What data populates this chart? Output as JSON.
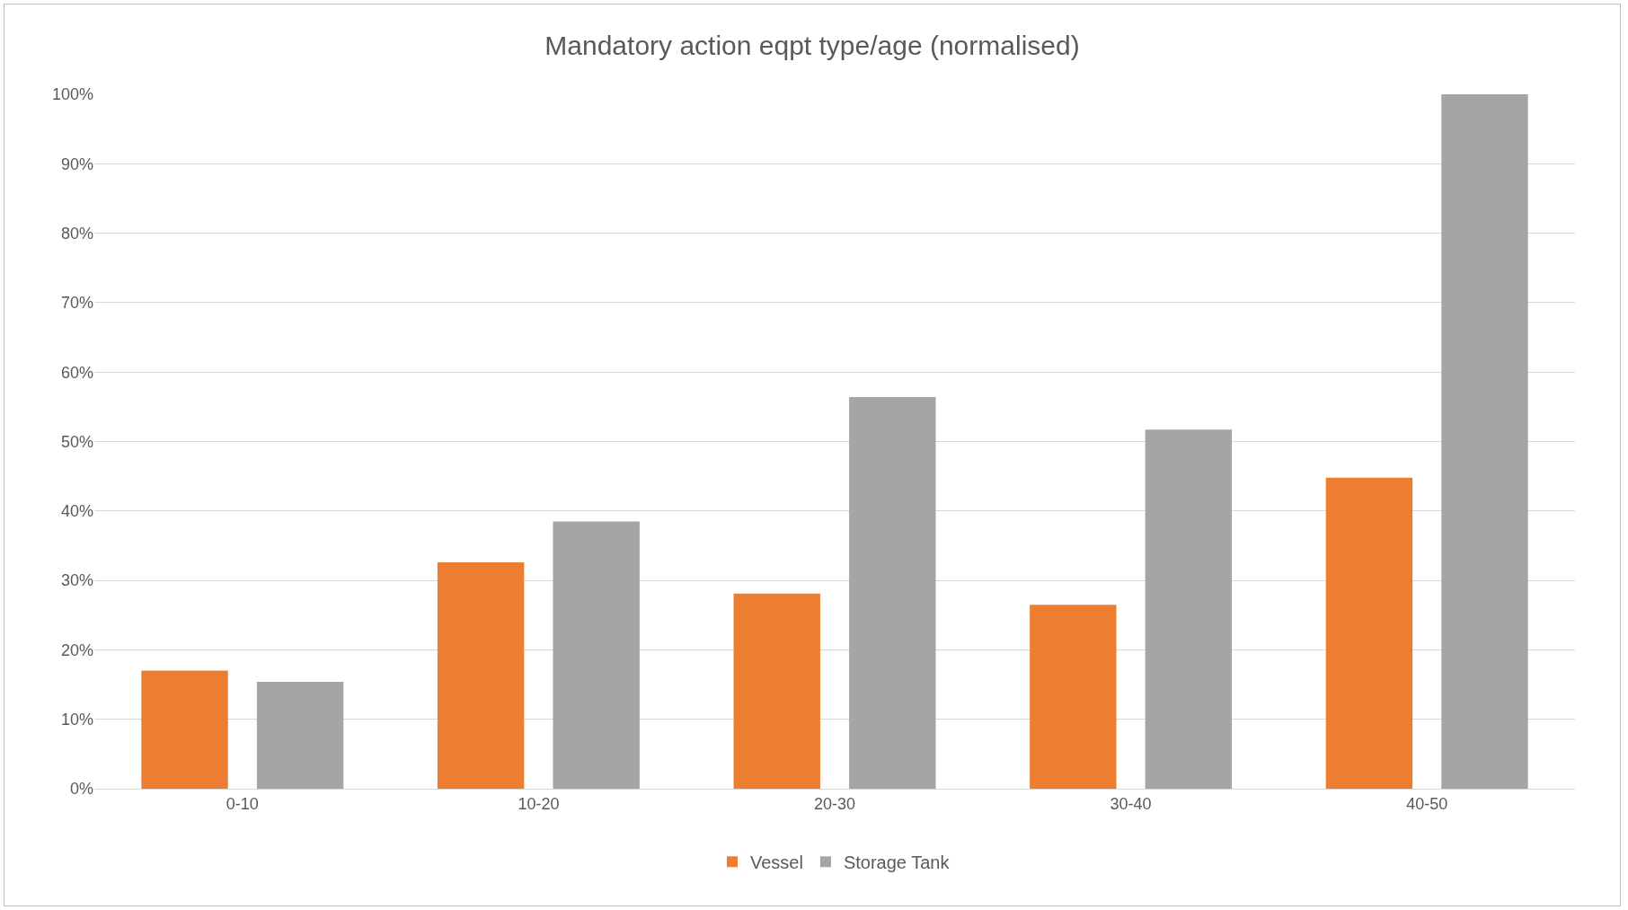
{
  "chart_data": {
    "type": "bar",
    "title": "Mandatory action eqpt type/age (normalised)",
    "categories": [
      "0-10",
      "10-20",
      "20-30",
      "30-40",
      "40-50"
    ],
    "series": [
      {
        "name": "Vessel",
        "color": "#ed7d31",
        "values": [
          17,
          32.6,
          28.1,
          26.5,
          44.8
        ]
      },
      {
        "name": "Storage Tank",
        "color": "#a5a5a5",
        "values": [
          15.4,
          38.5,
          56.4,
          51.7,
          100
        ]
      }
    ],
    "ylim": [
      0,
      100
    ],
    "yticks": [
      {
        "value": 0,
        "label": "0%"
      },
      {
        "value": 10,
        "label": "10%"
      },
      {
        "value": 20,
        "label": "20%"
      },
      {
        "value": 30,
        "label": "30%"
      },
      {
        "value": 40,
        "label": "40%"
      },
      {
        "value": 50,
        "label": "50%"
      },
      {
        "value": 60,
        "label": "60%"
      },
      {
        "value": 70,
        "label": "70%"
      },
      {
        "value": 80,
        "label": "80%"
      },
      {
        "value": 90,
        "label": "90%"
      },
      {
        "value": 100,
        "label": "100%"
      }
    ],
    "grid": "y",
    "legend": "bottom"
  }
}
